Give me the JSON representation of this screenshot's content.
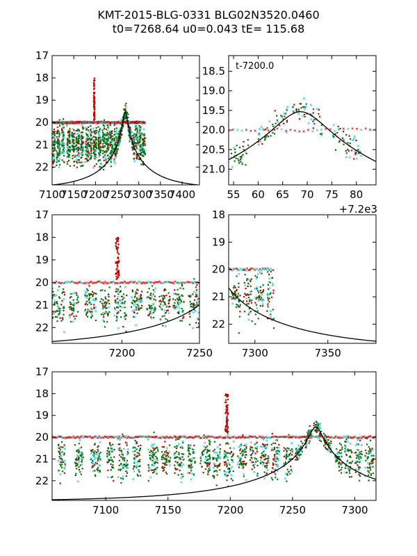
{
  "title_line1": "KMT-2015-BLG-0331 BLG02N3520.0460",
  "title_line2": "t0=7268.64 u0=0.043 tE= 115.68",
  "colors": {
    "red": "#c00000",
    "green": "#0a6e0a",
    "cyan": "#20c0c0",
    "model": "#000000"
  },
  "model": {
    "t0": 7268.64,
    "u0": 0.043,
    "tE": 115.68,
    "baseline_mag": 22.95
  },
  "chart_data": [
    {
      "id": "panel-1",
      "type": "scatter",
      "xlim": [
        7100,
        7440
      ],
      "ylim": [
        22.8,
        17.0
      ],
      "y_inverted": true,
      "xticks": [
        7100,
        7150,
        7200,
        7250,
        7300,
        7350,
        7400
      ],
      "xtick_labels": [
        "7100",
        "7150",
        "7200",
        "7250",
        "7300",
        "7350",
        "7400"
      ],
      "yticks": [
        17,
        18,
        19,
        20,
        21,
        22
      ],
      "ytick_labels": [
        "17",
        "18",
        "19",
        "20",
        "21",
        "22"
      ],
      "annotation": "",
      "offset_label": "",
      "data_range": [
        7100,
        7315
      ],
      "model_curve": true
    },
    {
      "id": "panel-2",
      "type": "scatter",
      "xlim": [
        54,
        84
      ],
      "ylim": [
        21.4,
        18.1
      ],
      "y_inverted": true,
      "xticks": [
        55,
        60,
        65,
        70,
        75,
        80
      ],
      "xtick_labels": [
        "55",
        "60",
        "65",
        "70",
        "75",
        "80"
      ],
      "yticks": [
        18.5,
        19.0,
        19.5,
        20.0,
        20.5,
        21.0
      ],
      "ytick_labels": [
        "18.5",
        "19.0",
        "19.5",
        "20.0",
        "20.5",
        "21.0"
      ],
      "annotation": "t-7200.0",
      "offset_label": "+7.2e3",
      "data_range": [
        54,
        84
      ],
      "model_curve": true
    },
    {
      "id": "panel-3",
      "type": "scatter",
      "xlim": [
        7155,
        7250
      ],
      "ylim": [
        22.7,
        17.0
      ],
      "y_inverted": true,
      "xticks": [
        7200,
        7250
      ],
      "xtick_labels": [
        "7200",
        "7250"
      ],
      "yticks": [
        17,
        18,
        19,
        20,
        21,
        22
      ],
      "ytick_labels": [
        "17",
        "18",
        "19",
        "20",
        "21",
        "22"
      ],
      "annotation": "",
      "offset_label": "",
      "data_range": [
        7155,
        7250
      ],
      "model_curve": true
    },
    {
      "id": "panel-4",
      "type": "scatter",
      "xlim": [
        7282,
        7383
      ],
      "ylim": [
        22.7,
        18.0
      ],
      "y_inverted": true,
      "xticks": [
        7300,
        7350
      ],
      "xtick_labels": [
        "7300",
        "7350"
      ],
      "yticks": [
        18,
        19,
        20,
        21,
        22
      ],
      "ytick_labels": [
        "18",
        "19",
        "20",
        "21",
        "22"
      ],
      "annotation": "",
      "offset_label": "",
      "data_range": [
        7282,
        7313
      ],
      "model_curve": true
    },
    {
      "id": "panel-5",
      "type": "scatter",
      "xlim": [
        7057,
        7317
      ],
      "ylim": [
        22.9,
        17.0
      ],
      "y_inverted": true,
      "xticks": [
        7100,
        7150,
        7200,
        7250,
        7300
      ],
      "xtick_labels": [
        "7100",
        "7150",
        "7200",
        "7250",
        "7300"
      ],
      "yticks": [
        17,
        18,
        19,
        20,
        21,
        22
      ],
      "ytick_labels": [
        "17",
        "18",
        "19",
        "20",
        "21",
        "22"
      ],
      "annotation": "",
      "offset_label": "",
      "data_range": [
        7057,
        7317
      ],
      "model_curve": true
    }
  ]
}
